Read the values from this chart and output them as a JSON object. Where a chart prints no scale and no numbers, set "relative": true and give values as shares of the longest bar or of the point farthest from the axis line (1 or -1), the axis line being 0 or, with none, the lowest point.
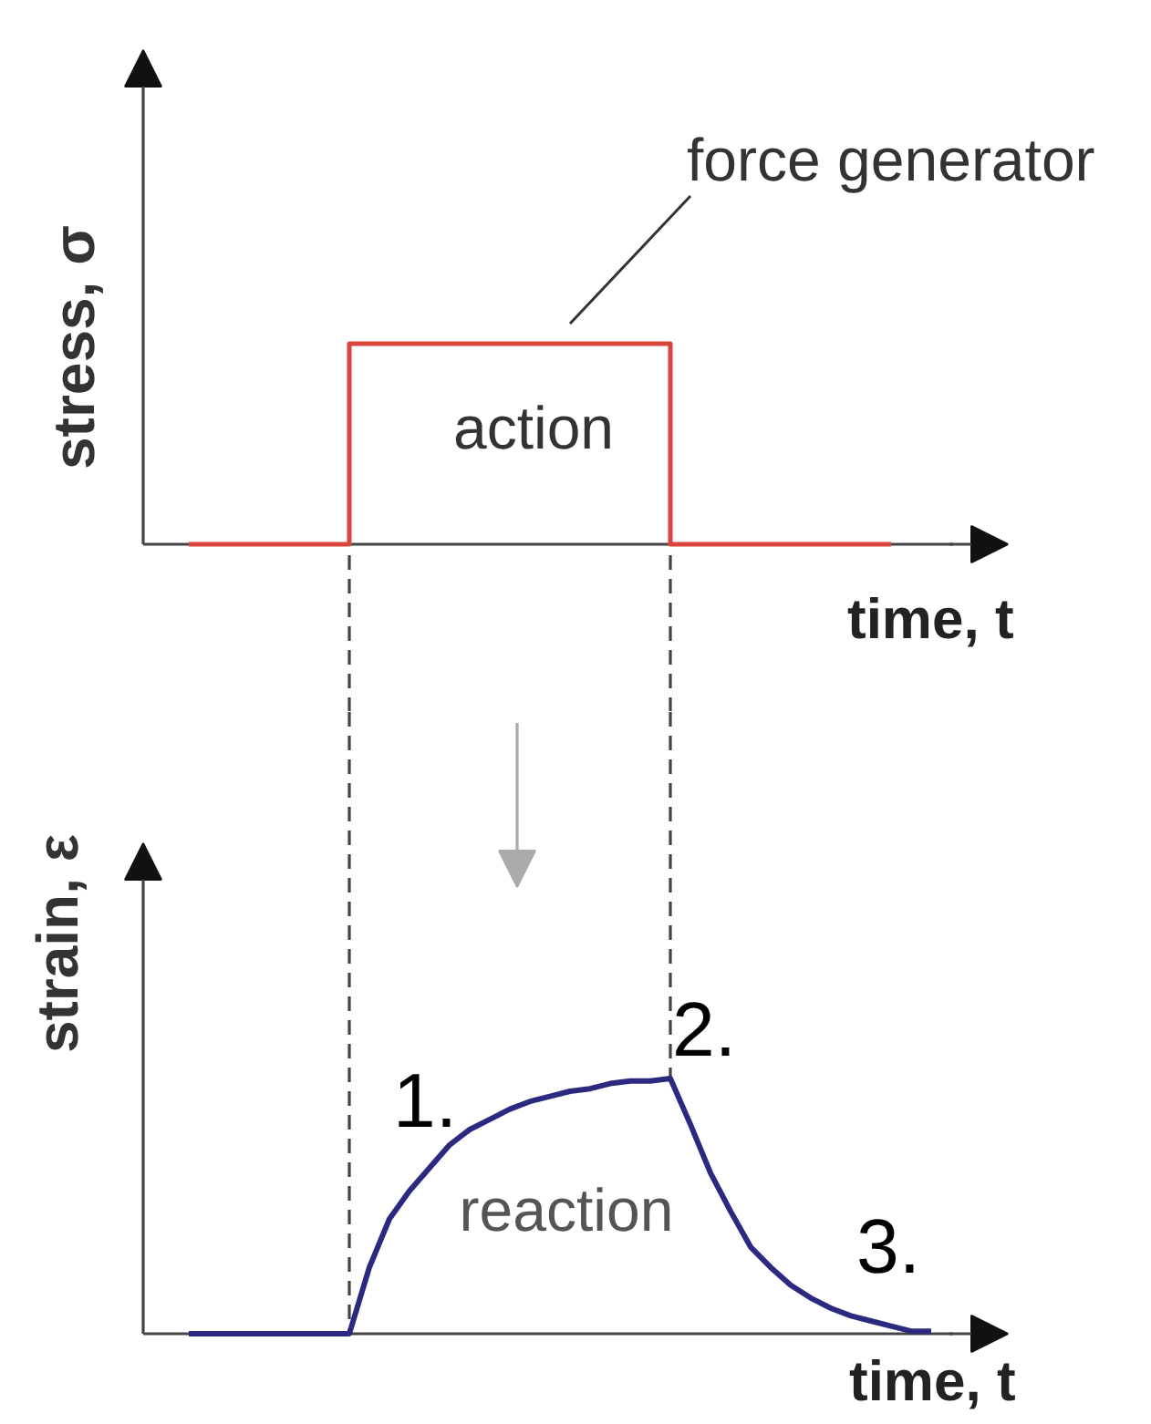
{
  "chart_data": [
    {
      "type": "step",
      "xlabel": "time, t",
      "ylabel": "stress, σ",
      "relative": true,
      "categories": [
        null,
        null,
        null,
        null,
        null,
        null,
        null,
        null,
        null,
        null,
        null,
        null,
        null,
        null,
        null,
        null,
        null,
        null,
        null,
        null,
        null,
        null,
        null,
        null,
        null,
        null,
        null,
        null,
        null,
        null,
        null,
        null,
        null,
        null,
        null,
        null
      ],
      "series": [
        {
          "color": "#d9453c",
          "values": [
            0,
            0,
            0,
            0,
            0,
            0,
            0,
            0,
            1,
            1,
            1,
            1,
            1,
            1,
            1,
            1,
            1,
            1,
            1,
            1,
            1,
            1,
            1,
            1,
            0,
            0,
            0,
            0,
            0,
            0,
            0,
            0,
            0,
            0,
            0,
            0
          ]
        }
      ],
      "annotations": [
        "force generator",
        "action"
      ]
    },
    {
      "type": "line",
      "xlabel": "time, t",
      "ylabel": "strain, ε",
      "relative": true,
      "categories": [
        null,
        null,
        null,
        null,
        null,
        null,
        null,
        null,
        null,
        null,
        null,
        null,
        null,
        null,
        null,
        null,
        null,
        null,
        null,
        null,
        null,
        null,
        null,
        null,
        null,
        null,
        null,
        null,
        null,
        null,
        null,
        null,
        null,
        null,
        null,
        null,
        null,
        null
      ],
      "series": [
        {
          "color": "#2b2a80",
          "values": [
            0,
            0,
            0,
            0,
            0,
            0,
            0,
            0,
            0,
            0.26,
            0.45,
            0.56,
            0.65,
            0.74,
            0.8,
            0.84,
            0.88,
            0.91,
            0.93,
            0.95,
            0.96,
            0.98,
            0.99,
            0.99,
            1,
            0.82,
            0.63,
            0.48,
            0.34,
            0.26,
            0.19,
            0.14,
            0.1,
            0.07,
            0.05,
            0.03,
            0.01,
            0.01
          ]
        }
      ],
      "annotations": [
        "reaction",
        "1.",
        "2.",
        "3."
      ]
    }
  ]
}
